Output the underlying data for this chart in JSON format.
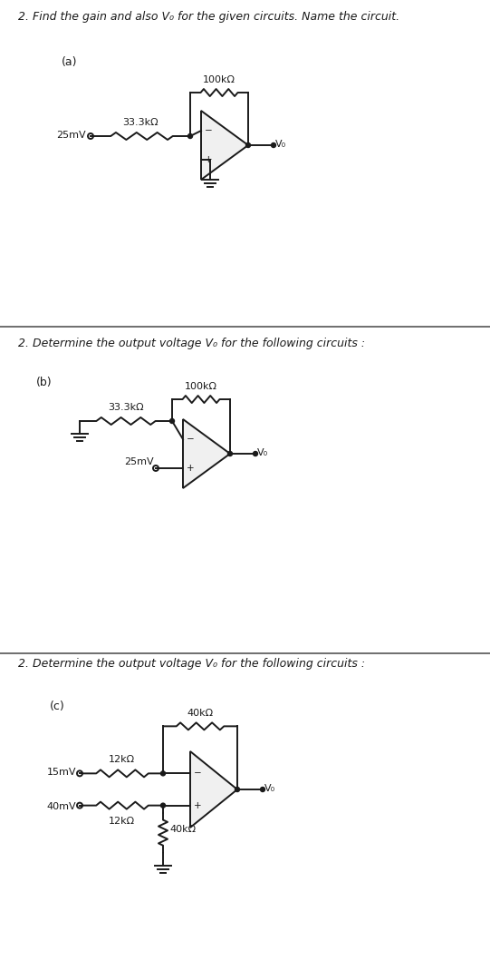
{
  "bg_color": "#ffffff",
  "line_color": "#1a1a1a",
  "panel_a": {
    "question": "2. Find the gain and also V₀ for the given circuits. Name the circuit.",
    "label": "(a)",
    "r1_label": "33.3kΩ",
    "r2_label": "100kΩ",
    "vin_label": "25mV",
    "vout_label": "V₀"
  },
  "panel_b": {
    "question": "2. Determine the output voltage V₀ for the following circuits :",
    "label": "(b)",
    "rf_label": "100kΩ",
    "r1_label": "33.3kΩ",
    "vin_label": "25mV",
    "vout_label": "V₀"
  },
  "panel_c": {
    "question": "2. Determine the output voltage V₀ for the following circuits :",
    "label": "(c)",
    "rf_label": "40kΩ",
    "r1_label": "12kΩ",
    "r2_label": "12kΩ",
    "r3_label": "40kΩ",
    "v1_label": "15mV",
    "v2_label": "40mV",
    "vout_label": "V₀"
  }
}
